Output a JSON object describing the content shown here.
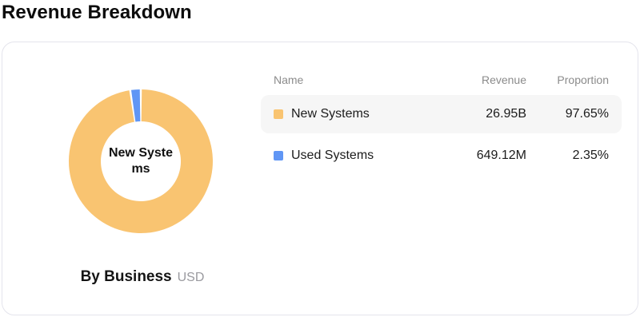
{
  "page": {
    "title": "Revenue Breakdown"
  },
  "card": {
    "caption": {
      "label": "By Business",
      "unit": "USD"
    },
    "donut": {
      "center_label": "New Systems"
    },
    "table": {
      "headers": [
        "Name",
        "Revenue",
        "Proportion"
      ],
      "rows": [
        {
          "name": "New Systems",
          "revenue": "26.95B",
          "proportion": "97.65%",
          "color": "#F9C471",
          "highlighted": true
        },
        {
          "name": "Used Systems",
          "revenue": "649.12M",
          "proportion": "2.35%",
          "color": "#6096F5",
          "highlighted": false
        }
      ]
    }
  },
  "chart_data": {
    "type": "pie",
    "title": "Revenue Breakdown",
    "subtitle": "By Business",
    "unit": "USD",
    "categories": [
      "New Systems",
      "Used Systems"
    ],
    "values": [
      26950000000,
      649120000
    ],
    "values_display": [
      "26.95B",
      "649.12M"
    ],
    "proportions": [
      97.65,
      2.35
    ],
    "colors": [
      "#F9C471",
      "#6096F5"
    ],
    "donut": true,
    "inner_radius_ratio": 0.56,
    "start_angle_deg": 0,
    "pad_angle_deg": 1.6,
    "center_label": "New Systems",
    "legend_position": "right-table"
  }
}
